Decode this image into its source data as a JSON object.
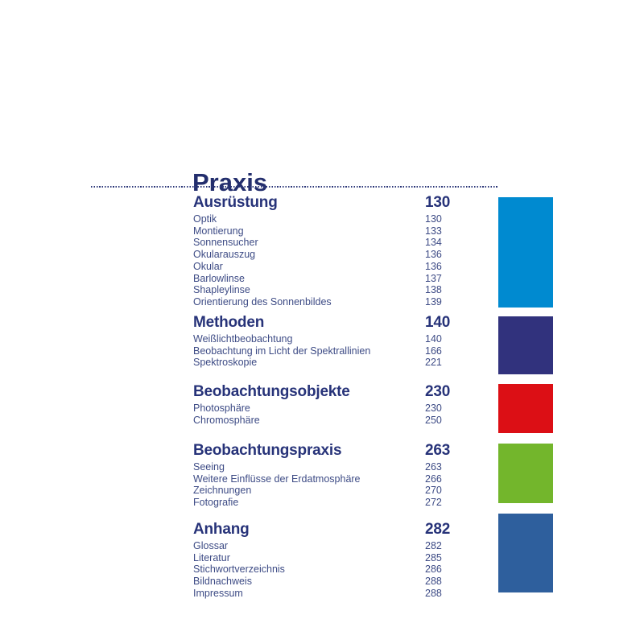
{
  "page": {
    "title": "Praxis",
    "divider_color": "#2a3577",
    "heading_text_color": "#273379",
    "item_text_color": "#3d4b85"
  },
  "toc": {
    "sections": [
      {
        "title": "Ausrüstung",
        "page": "130",
        "color": "#008ad0",
        "items": [
          {
            "label": "Optik",
            "page": "130"
          },
          {
            "label": "Montierung",
            "page": "133"
          },
          {
            "label": "Sonnensucher",
            "page": "134"
          },
          {
            "label": "Okularauszug",
            "page": "136"
          },
          {
            "label": "Okular",
            "page": "136"
          },
          {
            "label": "Barlowlinse",
            "page": "137"
          },
          {
            "label": "Shapleylinse",
            "page": "138"
          },
          {
            "label": "Orientierung des Sonnenbildes",
            "page": "139"
          }
        ]
      },
      {
        "title": "Methoden",
        "page": "140",
        "color": "#31327d",
        "items": [
          {
            "label": "Weißlichtbeobachtung",
            "page": "140"
          },
          {
            "label": "Beobachtung im Licht der Spektrallinien",
            "page": "166"
          },
          {
            "label": "Spektroskopie",
            "page": "221"
          }
        ]
      },
      {
        "title": "Beobachtungsobjekte",
        "page": "230",
        "color": "#dc0f15",
        "items": [
          {
            "label": "Photosphäre",
            "page": "230"
          },
          {
            "label": "Chromosphäre",
            "page": "250"
          }
        ]
      },
      {
        "title": "Beobachtungspraxis",
        "page": "263",
        "color": "#73b62c",
        "items": [
          {
            "label": "Seeing",
            "page": "263"
          },
          {
            "label": "Weitere Einflüsse der Erdatmosphäre",
            "page": "266"
          },
          {
            "label": "Zeichnungen",
            "page": "270"
          },
          {
            "label": "Fotografie",
            "page": "272"
          }
        ]
      },
      {
        "title": "Anhang",
        "page": "282",
        "color": "#2e5f9d",
        "items": [
          {
            "label": "Glossar",
            "page": "282"
          },
          {
            "label": "Literatur",
            "page": "285"
          },
          {
            "label": "Stichwortverzeichnis",
            "page": "286"
          },
          {
            "label": "Bildnachweis",
            "page": "288"
          },
          {
            "label": "Impressum",
            "page": "288"
          }
        ]
      }
    ]
  }
}
